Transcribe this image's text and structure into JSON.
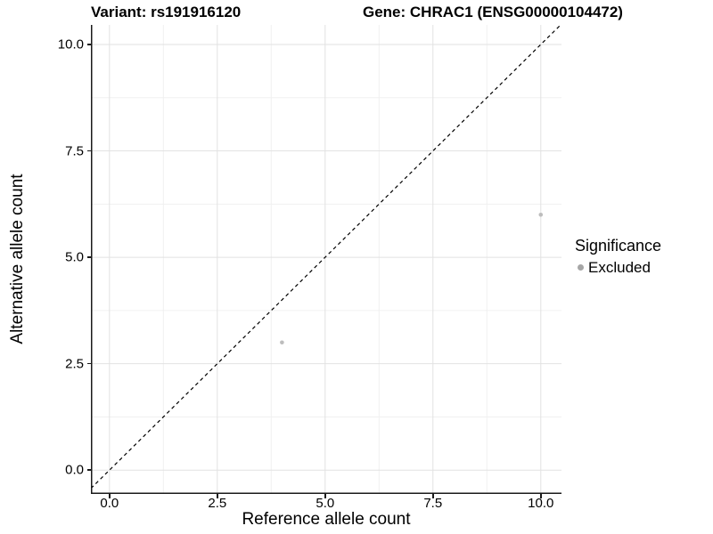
{
  "chart_data": {
    "type": "scatter",
    "titles": {
      "left": "Variant: rs191916120",
      "right": "Gene: CHRAC1 (ENSG00000104472)"
    },
    "xlabel": "Reference allele count",
    "ylabel": "Alternative allele count",
    "xlim": [
      -0.43,
      10.48
    ],
    "ylim": [
      -0.56,
      10.46
    ],
    "x_ticks": {
      "values": [
        0,
        2.5,
        5,
        7.5,
        10
      ],
      "labels": [
        "0.0",
        "2.5",
        "5.0",
        "7.5",
        "10.0"
      ]
    },
    "y_ticks": {
      "values": [
        0,
        2.5,
        5,
        7.5,
        10
      ],
      "labels": [
        "0.0",
        "2.5",
        "5.0",
        "7.5",
        "10.0"
      ]
    },
    "x_minor_ticks": [
      1.25,
      3.75,
      6.25,
      8.75
    ],
    "y_minor_ticks": [
      1.25,
      3.75,
      6.25,
      8.75
    ],
    "grid": "on",
    "identity_line": {
      "equation": "y = x",
      "style": "dashed",
      "color": "#000000"
    },
    "series": [
      {
        "name": "Excluded",
        "color": "#bdbdbd",
        "points": [
          [
            4,
            3
          ],
          [
            10,
            6
          ]
        ]
      }
    ],
    "legend": {
      "title": "Significance",
      "position": "right",
      "items": [
        {
          "label": "Excluded",
          "color": "#a6a6a6",
          "marker": "circle"
        }
      ]
    }
  },
  "colors": {
    "background": "#ffffff",
    "grid_major": "#e2e2e2",
    "grid_minor": "#f0f0f0",
    "axis": "#1a1a1a",
    "text": "#000000"
  }
}
